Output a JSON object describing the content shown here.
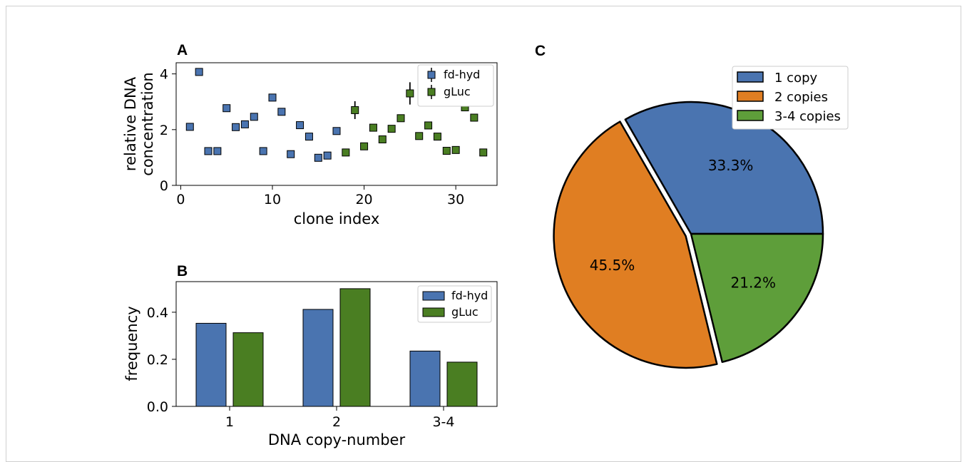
{
  "colors": {
    "blue": "#4a74b0",
    "green": "#4a7e22",
    "pie_blue": "#4a74b0",
    "pie_orange": "#e07e22",
    "pie_green": "#5e9e3a"
  },
  "chart_data": [
    {
      "panel": "A",
      "type": "scatter",
      "xlabel": "clone index",
      "ylabel_lines": [
        "relative DNA",
        "concentration"
      ],
      "xlim": [
        -0.5,
        34.5
      ],
      "ylim": [
        0,
        4.4
      ],
      "xticks": [
        "0",
        "10",
        "20",
        "30"
      ],
      "yticks": [
        "0",
        "2",
        "4"
      ],
      "legend_position": "top-right",
      "series": [
        {
          "name": "fd-hyd",
          "color": "#4a74b0",
          "points": [
            [
              1,
              2.1
            ],
            [
              2,
              4.07
            ],
            [
              3,
              1.23
            ],
            [
              4,
              1.23
            ],
            [
              5,
              2.77
            ],
            [
              6,
              2.09
            ],
            [
              7,
              2.19
            ],
            [
              8,
              2.46
            ],
            [
              9,
              1.23
            ],
            [
              10,
              3.15
            ],
            [
              11,
              2.64
            ],
            [
              12,
              1.12
            ],
            [
              13,
              2.16
            ],
            [
              14,
              1.75
            ],
            [
              15,
              0.99
            ],
            [
              16,
              1.07
            ],
            [
              17,
              1.95
            ]
          ]
        },
        {
          "name": "gLuc",
          "color": "#4a7e22",
          "points": [
            [
              18,
              1.18
            ],
            [
              19,
              2.7
            ],
            [
              20,
              1.4
            ],
            [
              21,
              2.07
            ],
            [
              22,
              1.65
            ],
            [
              23,
              2.03
            ],
            [
              24,
              2.41
            ],
            [
              25,
              3.3
            ],
            [
              26,
              1.77
            ],
            [
              27,
              2.15
            ],
            [
              28,
              1.75
            ],
            [
              29,
              1.24
            ],
            [
              30,
              1.27
            ],
            [
              31,
              2.8
            ],
            [
              32,
              2.43
            ],
            [
              33,
              1.18
            ]
          ],
          "errors": {
            "19": 0.32,
            "25": 0.4
          }
        }
      ]
    },
    {
      "panel": "B",
      "type": "bar",
      "xlabel": "DNA copy-number",
      "ylabel": "frequency",
      "categories": [
        "1",
        "2",
        "3-4"
      ],
      "ylim": [
        0,
        0.53
      ],
      "yticks": [
        "0.0",
        "0.2",
        "0.4"
      ],
      "legend_position": "top-right",
      "series": [
        {
          "name": "fd-hyd",
          "color": "#4a74b0",
          "values": [
            0.353,
            0.412,
            0.235
          ]
        },
        {
          "name": "gLuc",
          "color": "#4a7e22",
          "values": [
            0.313,
            0.5,
            0.188
          ]
        }
      ]
    },
    {
      "panel": "C",
      "type": "pie",
      "legend_position": "top-right",
      "slices": [
        {
          "label": "1 copy",
          "value": 33.3,
          "pct_label": "33.3%",
          "color": "#4a74b0"
        },
        {
          "label": "2 copies",
          "value": 45.5,
          "pct_label": "45.5%",
          "color": "#e07e22"
        },
        {
          "label": "3-4 copies",
          "value": 21.2,
          "pct_label": "21.2%",
          "color": "#5e9e3a"
        }
      ]
    }
  ]
}
